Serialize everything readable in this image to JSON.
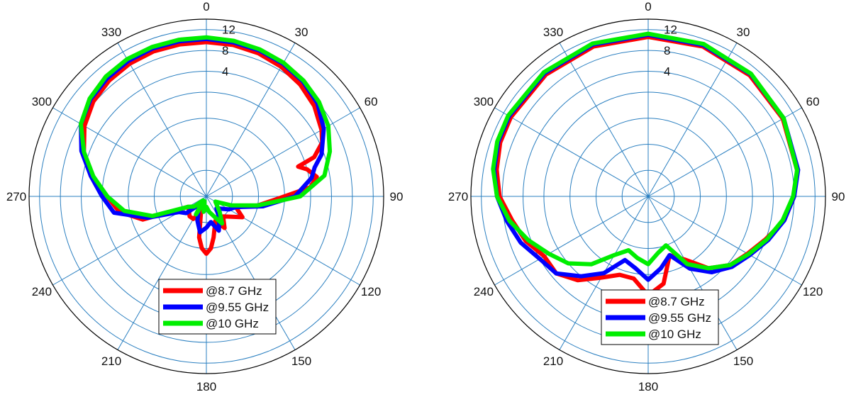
{
  "chart_data": [
    {
      "type": "polar-line",
      "theta_ticks": [
        "0",
        "30",
        "60",
        "90",
        "120",
        "150",
        "180",
        "210",
        "240",
        "270",
        "300",
        "330"
      ],
      "r_ticks": [
        "4",
        "8",
        "12"
      ],
      "rlim": [
        -20,
        14
      ],
      "rings": [
        -20,
        -15,
        -10,
        -5,
        0,
        4,
        8,
        12
      ],
      "legend": {
        "placement": "lower-center"
      },
      "series": [
        {
          "name": "@8.7 GHz",
          "color": "#ff0000",
          "points": [
            [
              0,
              9.6
            ],
            [
              10,
              9.5
            ],
            [
              20,
              9.2
            ],
            [
              30,
              8.7
            ],
            [
              40,
              8.0
            ],
            [
              50,
              7.0
            ],
            [
              60,
              5.5
            ],
            [
              65,
              4.5
            ],
            [
              70,
              2.0
            ],
            [
              72,
              -1.5
            ],
            [
              75,
              0.0
            ],
            [
              80,
              1.5
            ],
            [
              85,
              0.0
            ],
            [
              90,
              -5.0
            ],
            [
              100,
              -10.0
            ],
            [
              110,
              -14.0
            ],
            [
              120,
              -12.0
            ],
            [
              140,
              -15.0
            ],
            [
              150,
              -13.0
            ],
            [
              160,
              -15.0
            ],
            [
              170,
              -12.0
            ],
            [
              175,
              -10.0
            ],
            [
              180,
              -9.0
            ],
            [
              185,
              -10.0
            ],
            [
              190,
              -12.0
            ],
            [
              200,
              -17.0
            ],
            [
              210,
              -15.0
            ],
            [
              220,
              -15.0
            ],
            [
              240,
              -16.0
            ],
            [
              250,
              -7.0
            ],
            [
              260,
              -3.0
            ],
            [
              270,
              -1.0
            ],
            [
              280,
              2.5
            ],
            [
              290,
              5.0
            ],
            [
              300,
              7.0
            ],
            [
              310,
              8.3
            ],
            [
              320,
              9.0
            ],
            [
              330,
              9.4
            ],
            [
              340,
              9.6
            ],
            [
              350,
              9.6
            ],
            [
              360,
              9.6
            ]
          ]
        },
        {
          "name": "@9.55 GHz",
          "color": "#0000ff",
          "points": [
            [
              0,
              10.2
            ],
            [
              10,
              10.0
            ],
            [
              20,
              9.8
            ],
            [
              30,
              9.4
            ],
            [
              40,
              8.8
            ],
            [
              50,
              7.8
            ],
            [
              60,
              6.0
            ],
            [
              70,
              3.5
            ],
            [
              75,
              1.5
            ],
            [
              80,
              0.5
            ],
            [
              90,
              -3.0
            ],
            [
              100,
              -9.0
            ],
            [
              110,
              -14.0
            ],
            [
              120,
              -15.0
            ],
            [
              140,
              -17.0
            ],
            [
              150,
              -15.0
            ],
            [
              160,
              -13.0
            ],
            [
              170,
              -15.0
            ],
            [
              180,
              -14.0
            ],
            [
              190,
              -13.0
            ],
            [
              200,
              -15.0
            ],
            [
              210,
              -17.0
            ],
            [
              220,
              -18.0
            ],
            [
              230,
              -15.0
            ],
            [
              240,
              -14.0
            ],
            [
              250,
              -8.0
            ],
            [
              260,
              -2.0
            ],
            [
              270,
              0.0
            ],
            [
              280,
              2.5
            ],
            [
              290,
              5.5
            ],
            [
              300,
              7.8
            ],
            [
              310,
              9.0
            ],
            [
              320,
              9.6
            ],
            [
              330,
              10.0
            ],
            [
              340,
              10.2
            ],
            [
              350,
              10.2
            ],
            [
              360,
              10.2
            ]
          ]
        },
        {
          "name": "@10 GHz",
          "color": "#00ee00",
          "points": [
            [
              0,
              10.5
            ],
            [
              10,
              10.3
            ],
            [
              20,
              10.0
            ],
            [
              30,
              9.6
            ],
            [
              40,
              9.0
            ],
            [
              50,
              8.2
            ],
            [
              60,
              7.0
            ],
            [
              70,
              5.2
            ],
            [
              80,
              3.0
            ],
            [
              90,
              -2.0
            ],
            [
              100,
              -10.0
            ],
            [
              110,
              -15.0
            ],
            [
              120,
              -18.0
            ],
            [
              140,
              -16.0
            ],
            [
              150,
              -14.0
            ],
            [
              160,
              -16.0
            ],
            [
              170,
              -17.0
            ],
            [
              180,
              -18.0
            ],
            [
              190,
              -17.0
            ],
            [
              200,
              -19.0
            ],
            [
              210,
              -16.0
            ],
            [
              220,
              -19.0
            ],
            [
              230,
              -17.0
            ],
            [
              240,
              -16.0
            ],
            [
              250,
              -9.0
            ],
            [
              260,
              -4.0
            ],
            [
              270,
              -1.0
            ],
            [
              280,
              2.0
            ],
            [
              290,
              5.0
            ],
            [
              300,
              7.8
            ],
            [
              310,
              9.2
            ],
            [
              320,
              10.0
            ],
            [
              330,
              10.4
            ],
            [
              340,
              10.5
            ],
            [
              350,
              10.5
            ],
            [
              360,
              10.5
            ]
          ]
        }
      ]
    },
    {
      "type": "polar-line",
      "theta_ticks": [
        "0",
        "30",
        "60",
        "90",
        "120",
        "150",
        "180",
        "210",
        "240",
        "270",
        "300",
        "330"
      ],
      "r_ticks": [
        "4",
        "8",
        "12"
      ],
      "rlim": [
        -20,
        14
      ],
      "rings": [
        -20,
        -15,
        -10,
        -5,
        0,
        4,
        8,
        12
      ],
      "legend": {
        "placement": "lower-center"
      },
      "series": [
        {
          "name": "@8.7 GHz",
          "color": "#ff0000",
          "points": [
            [
              0,
              10.6
            ],
            [
              20,
              10.6
            ],
            [
              40,
              10.3
            ],
            [
              60,
              9.8
            ],
            [
              80,
              9.0
            ],
            [
              90,
              8.0
            ],
            [
              100,
              6.5
            ],
            [
              110,
              4.0
            ],
            [
              120,
              2.0
            ],
            [
              130,
              0.5
            ],
            [
              140,
              -2.0
            ],
            [
              150,
              -6.0
            ],
            [
              160,
              -8.0
            ],
            [
              170,
              -3.0
            ],
            [
              180,
              -1.0
            ],
            [
              190,
              -4.0
            ],
            [
              200,
              -4.0
            ],
            [
              210,
              -2.0
            ],
            [
              220,
              1.0
            ],
            [
              230,
              3.0
            ],
            [
              240,
              3.0
            ],
            [
              250,
              5.0
            ],
            [
              260,
              6.5
            ],
            [
              270,
              8.5
            ],
            [
              280,
              9.5
            ],
            [
              290,
              10.2
            ],
            [
              300,
              10.4
            ],
            [
              320,
              10.5
            ],
            [
              340,
              10.6
            ],
            [
              360,
              10.6
            ]
          ]
        },
        {
          "name": "@9.55 GHz",
          "color": "#0000ff",
          "points": [
            [
              0,
              11.0
            ],
            [
              20,
              10.9
            ],
            [
              40,
              10.6
            ],
            [
              60,
              10.0
            ],
            [
              80,
              9.2
            ],
            [
              90,
              8.0
            ],
            [
              100,
              6.5
            ],
            [
              110,
              4.5
            ],
            [
              120,
              2.5
            ],
            [
              130,
              1.0
            ],
            [
              140,
              -1.0
            ],
            [
              150,
              -4.0
            ],
            [
              160,
              -8.0
            ],
            [
              170,
              -6.0
            ],
            [
              180,
              -4.0
            ],
            [
              190,
              -6.0
            ],
            [
              200,
              -7.0
            ],
            [
              210,
              -3.0
            ],
            [
              220,
              0.0
            ],
            [
              230,
              3.0
            ],
            [
              240,
              4.0
            ],
            [
              250,
              6.0
            ],
            [
              260,
              7.5
            ],
            [
              270,
              9.0
            ],
            [
              280,
              10.0
            ],
            [
              290,
              10.6
            ],
            [
              300,
              10.8
            ],
            [
              320,
              10.9
            ],
            [
              340,
              11.0
            ],
            [
              360,
              11.0
            ]
          ]
        },
        {
          "name": "@10 GHz",
          "color": "#00ee00",
          "points": [
            [
              0,
              11.2
            ],
            [
              20,
              11.1
            ],
            [
              40,
              10.7
            ],
            [
              60,
              10.0
            ],
            [
              80,
              9.0
            ],
            [
              90,
              7.8
            ],
            [
              100,
              6.2
            ],
            [
              110,
              4.2
            ],
            [
              120,
              2.2
            ],
            [
              130,
              0.5
            ],
            [
              140,
              -2.0
            ],
            [
              150,
              -5.0
            ],
            [
              160,
              -10.0
            ],
            [
              170,
              -9.0
            ],
            [
              180,
              -7.0
            ],
            [
              190,
              -8.0
            ],
            [
              200,
              -9.0
            ],
            [
              210,
              -7.0
            ],
            [
              220,
              -3.0
            ],
            [
              230,
              0.0
            ],
            [
              240,
              2.0
            ],
            [
              250,
              4.5
            ],
            [
              260,
              7.0
            ],
            [
              270,
              9.0
            ],
            [
              280,
              10.2
            ],
            [
              290,
              10.8
            ],
            [
              300,
              11.0
            ],
            [
              320,
              11.1
            ],
            [
              340,
              11.2
            ],
            [
              360,
              11.2
            ]
          ]
        }
      ]
    }
  ]
}
